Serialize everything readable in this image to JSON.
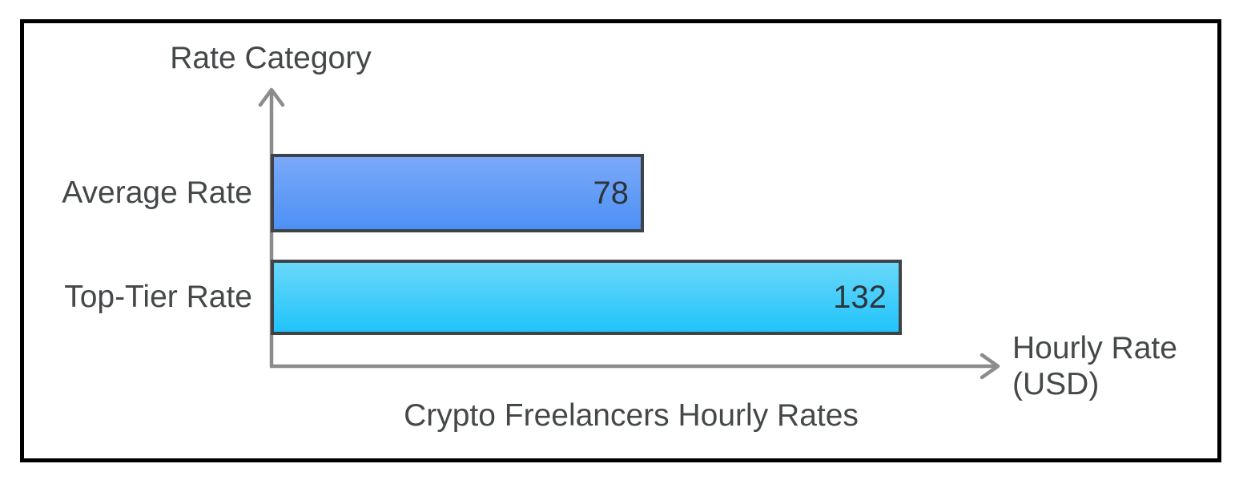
{
  "chart_data": {
    "type": "bar",
    "orientation": "horizontal",
    "title": "Crypto Freelancers Hourly Rates",
    "xlabel": "Hourly Rate (USD)",
    "ylabel": "Rate Category",
    "categories": [
      "Average Rate",
      "Top-Tier Rate"
    ],
    "values": [
      78,
      132
    ],
    "xlim": [
      0,
      140
    ],
    "grid": false,
    "legend": false,
    "bar_colors": [
      {
        "top": "#7AA9F8",
        "bottom": "#4D90F5"
      },
      {
        "top": "#69D8F9",
        "bottom": "#21C3FA"
      }
    ],
    "colors": {
      "axis": "#8C8C8C",
      "bar_border": "#3F4347",
      "label_text": "#454849",
      "value_text": "#2D353C",
      "frame_border": "#000000",
      "background": "#FFFFFF"
    }
  }
}
